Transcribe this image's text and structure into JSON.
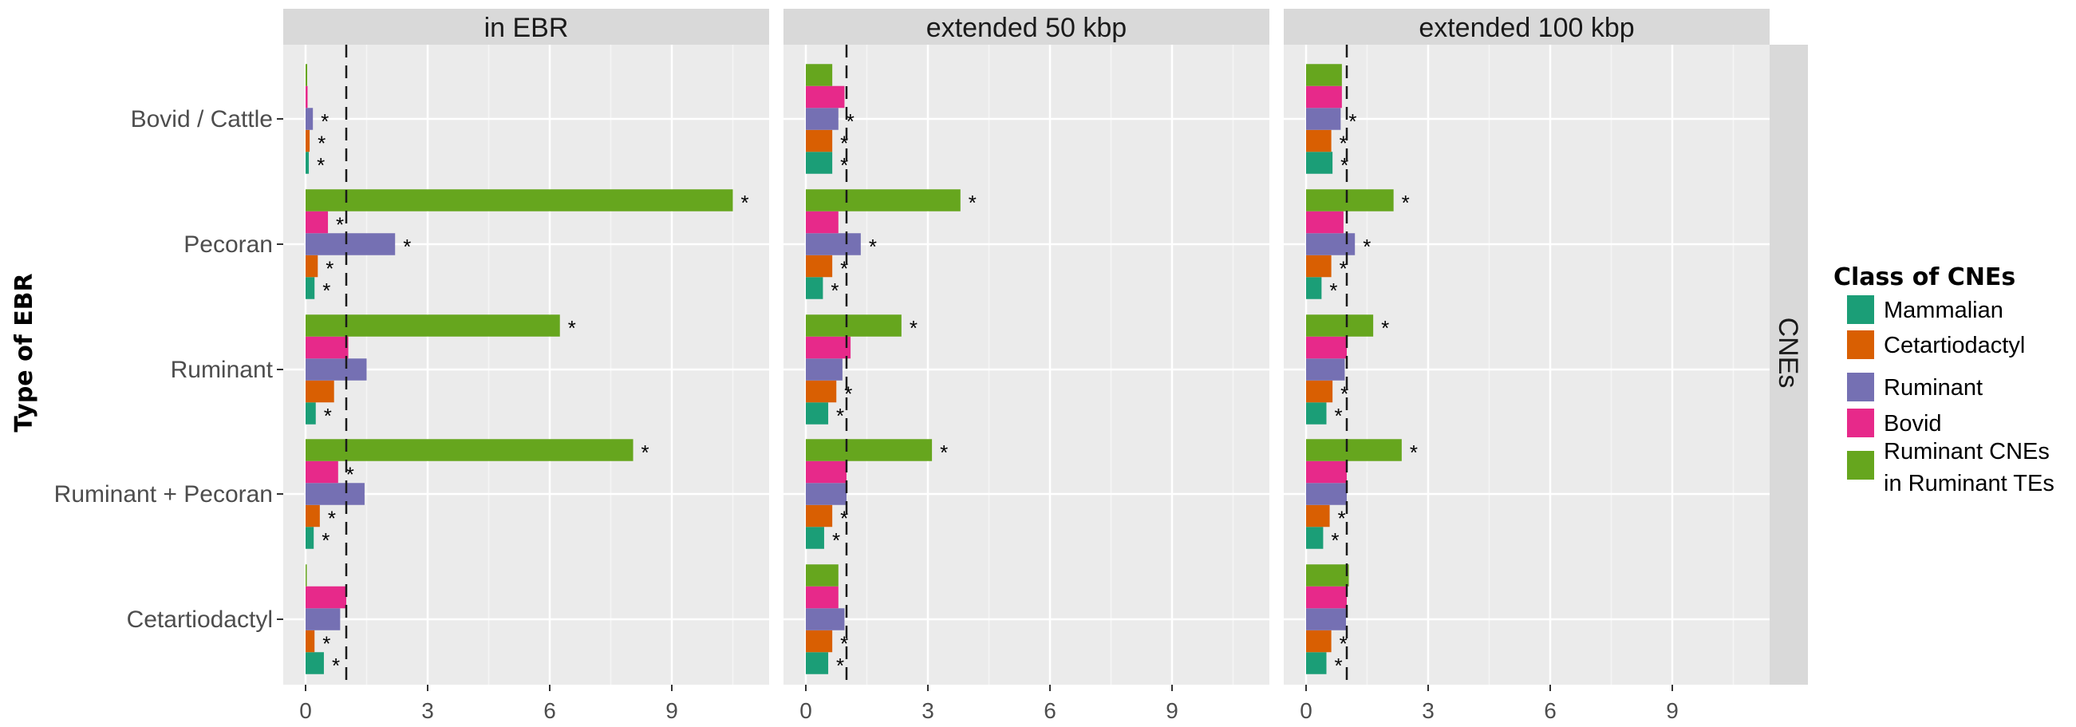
{
  "chart_data": {
    "type": "bar",
    "orientation": "horizontal",
    "ylabel": "Type of EBR",
    "row_strip": "CNEs",
    "legend_title": "Class of CNEs",
    "legend_position": "right",
    "grid": true,
    "xlim": [
      -0.5,
      11.6
    ],
    "xticks": [
      0,
      3,
      6,
      9
    ],
    "reference_line": 1,
    "categories": [
      "Bovid / Cattle",
      "Pecoran",
      "Ruminant",
      "Ruminant + Pecoran",
      "Cetartiodactyl"
    ],
    "series": [
      {
        "name": "Mammalian",
        "color": "#1b9e77"
      },
      {
        "name": "Cetartiodactyl",
        "color": "#d95f02"
      },
      {
        "name": "Ruminant",
        "color": "#7570b3"
      },
      {
        "name": "Bovid",
        "color": "#e7298a"
      },
      {
        "name": "Ruminant CNEs\nin Ruminant TEs",
        "color": "#66a61e"
      }
    ],
    "panels": [
      {
        "title": "in EBR",
        "values": [
          [
            0.08,
            0.1,
            0.18,
            0.05,
            0.04
          ],
          [
            0.22,
            0.3,
            2.2,
            0.55,
            10.5
          ],
          [
            0.25,
            0.7,
            1.5,
            1.05,
            6.25
          ],
          [
            0.2,
            0.35,
            1.45,
            0.8,
            8.05
          ],
          [
            0.45,
            0.22,
            0.85,
            1.0,
            0.0
          ]
        ],
        "stars": [
          [
            true,
            true,
            true,
            false,
            false
          ],
          [
            true,
            true,
            true,
            true,
            true
          ],
          [
            true,
            false,
            false,
            false,
            true
          ],
          [
            true,
            true,
            false,
            true,
            true
          ],
          [
            true,
            true,
            false,
            false,
            false
          ]
        ]
      },
      {
        "title": "extended 50 kbp",
        "values": [
          [
            0.65,
            0.65,
            0.8,
            0.95,
            0.65
          ],
          [
            0.42,
            0.65,
            1.35,
            0.8,
            3.8
          ],
          [
            0.55,
            0.75,
            0.9,
            1.1,
            2.35
          ],
          [
            0.45,
            0.65,
            1.0,
            1.0,
            3.1
          ],
          [
            0.55,
            0.65,
            0.95,
            0.8,
            0.8
          ]
        ],
        "stars": [
          [
            true,
            true,
            true,
            false,
            false
          ],
          [
            true,
            true,
            true,
            false,
            true
          ],
          [
            true,
            true,
            false,
            false,
            true
          ],
          [
            true,
            true,
            false,
            false,
            true
          ],
          [
            true,
            true,
            false,
            false,
            false
          ]
        ]
      },
      {
        "title": "extended 100 kbp",
        "values": [
          [
            0.65,
            0.62,
            0.85,
            0.88,
            0.88
          ],
          [
            0.38,
            0.62,
            1.2,
            0.92,
            2.15
          ],
          [
            0.5,
            0.65,
            0.95,
            1.0,
            1.65
          ],
          [
            0.42,
            0.58,
            1.0,
            1.0,
            2.35
          ],
          [
            0.5,
            0.62,
            0.98,
            1.0,
            1.05
          ]
        ],
        "stars": [
          [
            true,
            true,
            true,
            false,
            false
          ],
          [
            true,
            true,
            true,
            false,
            true
          ],
          [
            true,
            true,
            false,
            false,
            true
          ],
          [
            true,
            true,
            false,
            false,
            true
          ],
          [
            true,
            true,
            false,
            false,
            false
          ]
        ]
      }
    ]
  }
}
